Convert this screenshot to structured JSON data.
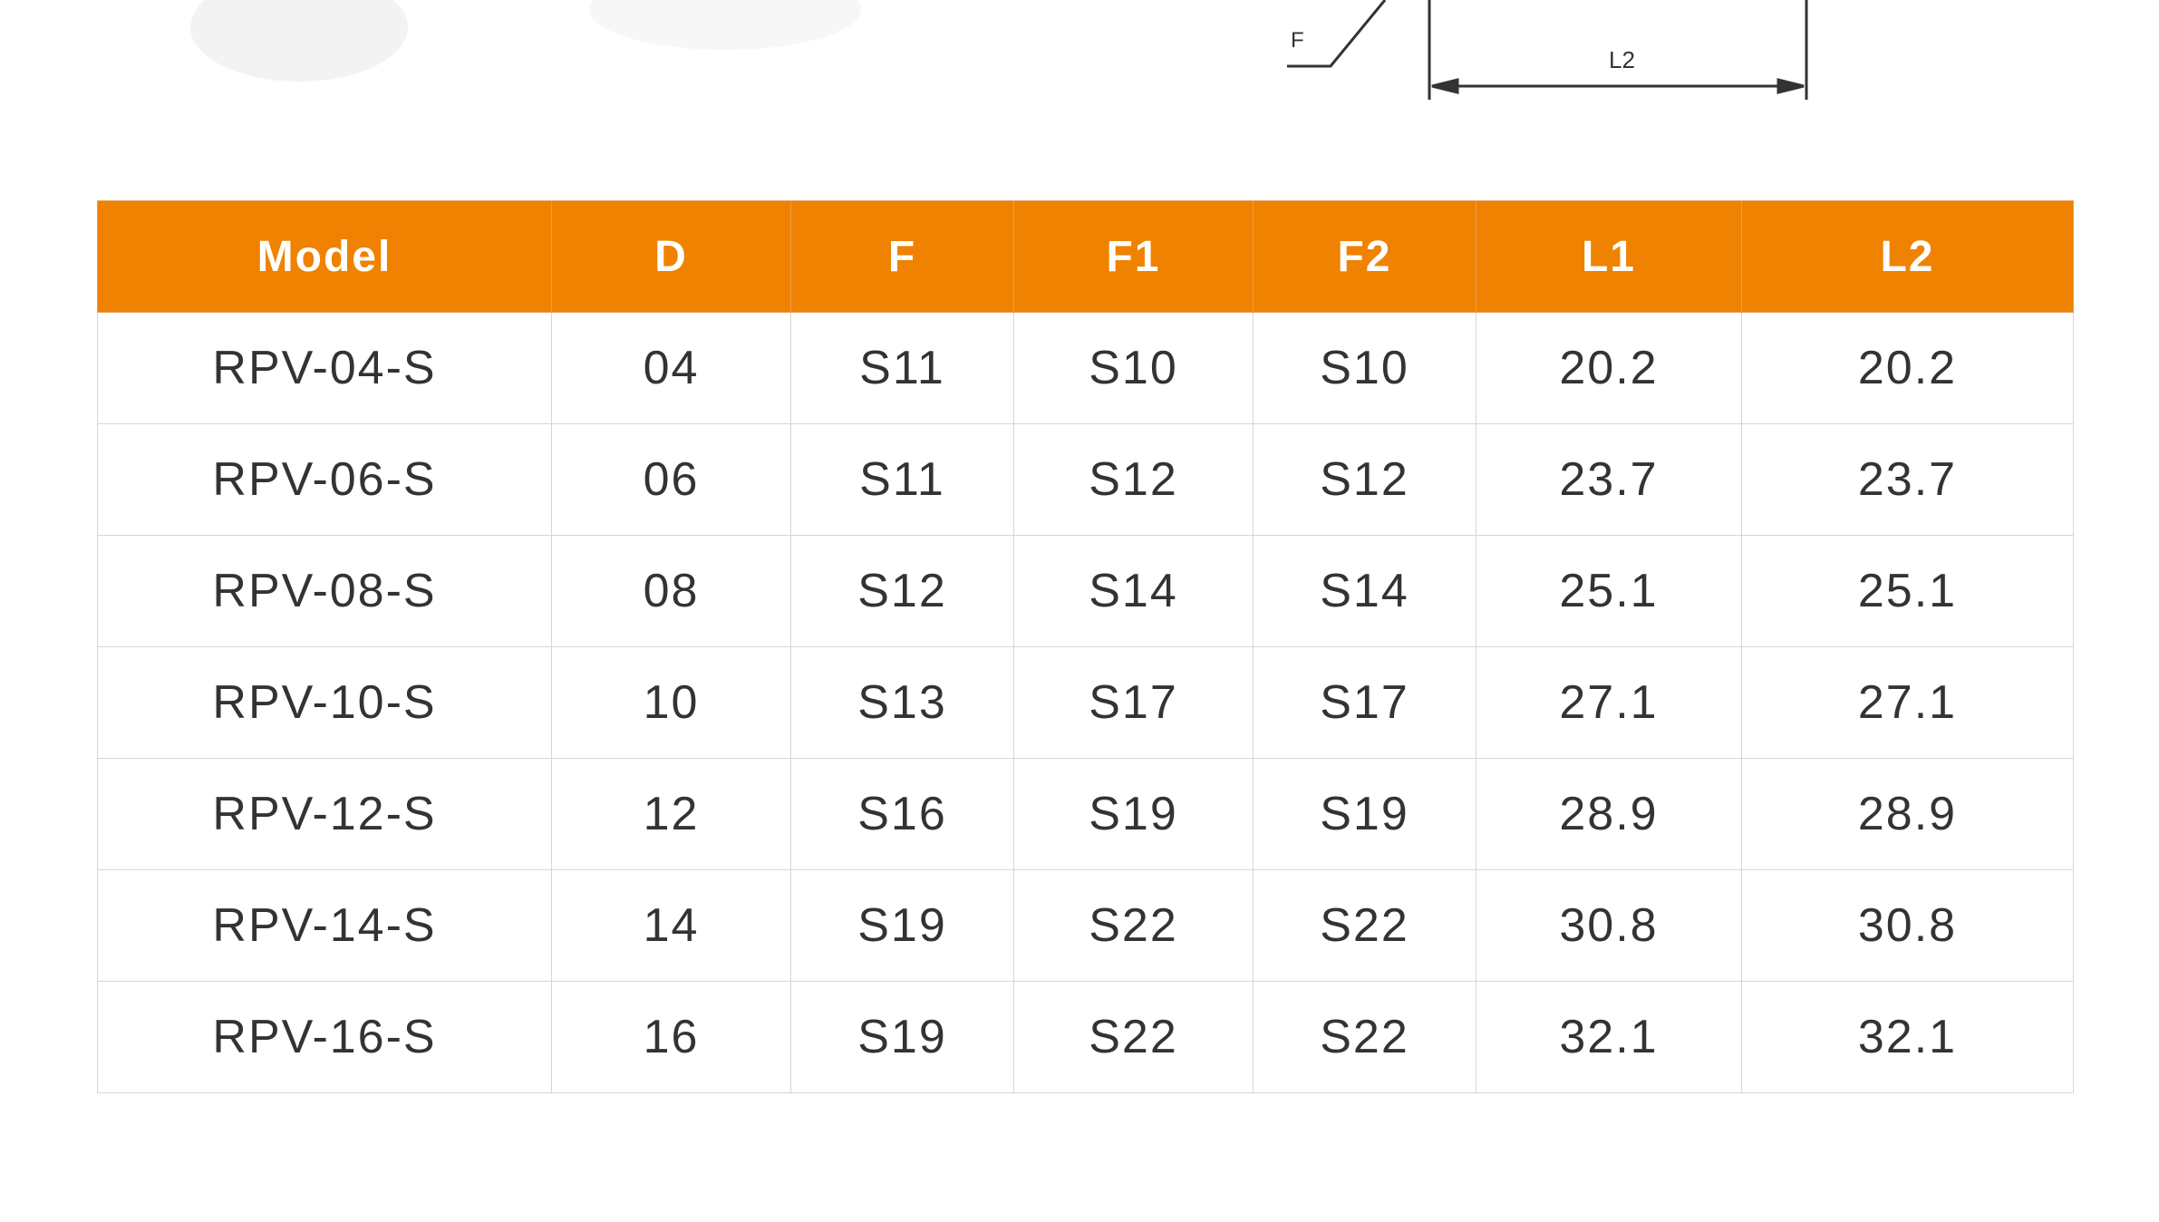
{
  "diagram": {
    "labels": [
      "F",
      "L2"
    ]
  },
  "table": {
    "columns": [
      "Model",
      "D",
      "F",
      "F1",
      "F2",
      "L1",
      "L2"
    ],
    "rows": [
      [
        "RPV-04-S",
        "04",
        "S11",
        "S10",
        "S10",
        "20.2",
        "20.2"
      ],
      [
        "RPV-06-S",
        "06",
        "S11",
        "S12",
        "S12",
        "23.7",
        "23.7"
      ],
      [
        "RPV-08-S",
        "08",
        "S12",
        "S14",
        "S14",
        "25.1",
        "25.1"
      ],
      [
        "RPV-10-S",
        "10",
        "S13",
        "S17",
        "S17",
        "27.1",
        "27.1"
      ],
      [
        "RPV-12-S",
        "12",
        "S16",
        "S19",
        "S19",
        "28.9",
        "28.9"
      ],
      [
        "RPV-14-S",
        "14",
        "S19",
        "S22",
        "S22",
        "30.8",
        "30.8"
      ],
      [
        "RPV-16-S",
        "16",
        "S19",
        "S22",
        "S22",
        "32.1",
        "32.1"
      ]
    ]
  }
}
